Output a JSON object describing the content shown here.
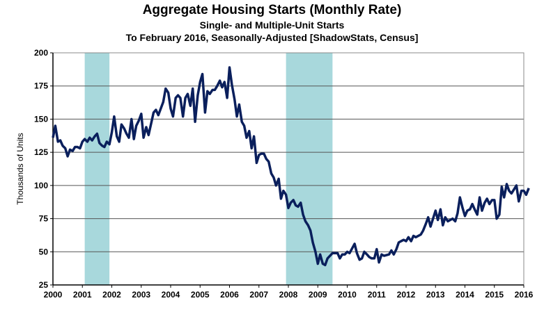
{
  "chart_data": {
    "type": "line",
    "title": "Aggregate Housing Starts (Monthly Rate)",
    "subtitle": "Single- and Multiple-Unit Starts",
    "subtitle2": "To February 2016, Seasonally-Adjusted [ShadowStats, Census]",
    "xlabel": "",
    "ylabel": "Thousands of Units",
    "xlim": [
      2000,
      2016.17
    ],
    "ylim": [
      25,
      200
    ],
    "x_ticks": [
      "2000",
      "2001",
      "2002",
      "2003",
      "2004",
      "2005",
      "2006",
      "2007",
      "2008",
      "2009",
      "2010",
      "2011",
      "2012",
      "2013",
      "2014",
      "2015",
      "2016"
    ],
    "y_ticks": [
      "25",
      "50",
      "75",
      "100",
      "125",
      "150",
      "175",
      "200"
    ],
    "grid": true,
    "line_color": "#0a1f5c",
    "shade_color": "#a8d8dc",
    "recession_shading": [
      [
        2001.08,
        2001.92
      ],
      [
        2007.92,
        2009.5
      ]
    ],
    "series": [
      {
        "name": "Housing Starts",
        "x": [
          2000.0,
          2000.08,
          2000.17,
          2000.25,
          2000.33,
          2000.42,
          2000.5,
          2000.58,
          2000.67,
          2000.75,
          2000.83,
          2000.92,
          2001.0,
          2001.08,
          2001.17,
          2001.25,
          2001.33,
          2001.42,
          2001.5,
          2001.58,
          2001.67,
          2001.75,
          2001.83,
          2001.92,
          2002.0,
          2002.08,
          2002.17,
          2002.25,
          2002.33,
          2002.42,
          2002.5,
          2002.58,
          2002.67,
          2002.75,
          2002.83,
          2002.92,
          2003.0,
          2003.08,
          2003.17,
          2003.25,
          2003.42,
          2003.5,
          2003.58,
          2003.75,
          2003.83,
          2003.92,
          2004.0,
          2004.08,
          2004.17,
          2004.25,
          2004.33,
          2004.42,
          2004.5,
          2004.58,
          2004.67,
          2004.75,
          2004.83,
          2004.92,
          2005.0,
          2005.08,
          2005.17,
          2005.25,
          2005.33,
          2005.42,
          2005.5,
          2005.58,
          2005.67,
          2005.75,
          2005.83,
          2005.92,
          2006.0,
          2006.08,
          2006.17,
          2006.25,
          2006.33,
          2006.42,
          2006.5,
          2006.58,
          2006.67,
          2006.75,
          2006.83,
          2006.92,
          2007.0,
          2007.08,
          2007.17,
          2007.25,
          2007.33,
          2007.42,
          2007.5,
          2007.58,
          2007.67,
          2007.75,
          2007.83,
          2007.92,
          2008.0,
          2008.08,
          2008.17,
          2008.25,
          2008.33,
          2008.42,
          2008.5,
          2008.58,
          2008.67,
          2008.75,
          2008.83,
          2008.92,
          2009.0,
          2009.08,
          2009.17,
          2009.25,
          2009.33,
          2009.5,
          2009.58,
          2009.67,
          2009.75,
          2009.83,
          2009.92,
          2010.0,
          2010.08,
          2010.25,
          2010.33,
          2010.42,
          2010.5,
          2010.58,
          2010.67,
          2010.75,
          2010.83,
          2010.92,
          2011.0,
          2011.08,
          2011.17,
          2011.25,
          2011.42,
          2011.5,
          2011.58,
          2011.67,
          2011.75,
          2011.83,
          2011.92,
          2012.0,
          2012.08,
          2012.17,
          2012.25,
          2012.33,
          2012.5,
          2012.58,
          2012.67,
          2012.75,
          2012.83,
          2013.0,
          2013.08,
          2013.17,
          2013.25,
          2013.33,
          2013.42,
          2013.5,
          2013.58,
          2013.67,
          2013.75,
          2013.83,
          2013.92,
          2014.0,
          2014.08,
          2014.17,
          2014.25,
          2014.33,
          2014.42,
          2014.5,
          2014.58,
          2014.67,
          2014.75,
          2014.83,
          2014.92,
          2015.0,
          2015.08,
          2015.17,
          2015.25,
          2015.33,
          2015.42,
          2015.5,
          2015.58,
          2015.75,
          2015.83,
          2015.92,
          2016.0,
          2016.08,
          2016.17
        ],
        "values": [
          136,
          145,
          133,
          134,
          130,
          128,
          122,
          127,
          126,
          129,
          129,
          128,
          133,
          135,
          133,
          136,
          134,
          137,
          139,
          132,
          130,
          129,
          133,
          131,
          140,
          152,
          137,
          133,
          146,
          143,
          139,
          136,
          150,
          135,
          145,
          149,
          154,
          136,
          144,
          138,
          155,
          157,
          153,
          163,
          173,
          170,
          158,
          152,
          166,
          168,
          166,
          152,
          166,
          169,
          160,
          173,
          148,
          168,
          178,
          184,
          155,
          171,
          169,
          172,
          172,
          175,
          179,
          174,
          178,
          166,
          189,
          176,
          165,
          152,
          161,
          148,
          145,
          136,
          141,
          128,
          137,
          117,
          123,
          124,
          124,
          120,
          118,
          109,
          106,
          100,
          105,
          90,
          96,
          93,
          83,
          87,
          89,
          85,
          84,
          87,
          78,
          73,
          70,
          66,
          57,
          50,
          41,
          48,
          41,
          40,
          45,
          49,
          49,
          49,
          45,
          48,
          48,
          50,
          49,
          56,
          49,
          44,
          45,
          50,
          48,
          46,
          45,
          45,
          52,
          42,
          48,
          47,
          48,
          51,
          48,
          52,
          57,
          58,
          59,
          58,
          61,
          58,
          62,
          61,
          63,
          66,
          71,
          76,
          69,
          81,
          74,
          82,
          70,
          76,
          73,
          74,
          75,
          73,
          79,
          91,
          83,
          77,
          81,
          82,
          86,
          82,
          78,
          91,
          81,
          87,
          90,
          86,
          89,
          89,
          75,
          78,
          99,
          91,
          101,
          96,
          94,
          100,
          88,
          96,
          96,
          93,
          98
        ]
      }
    ]
  }
}
